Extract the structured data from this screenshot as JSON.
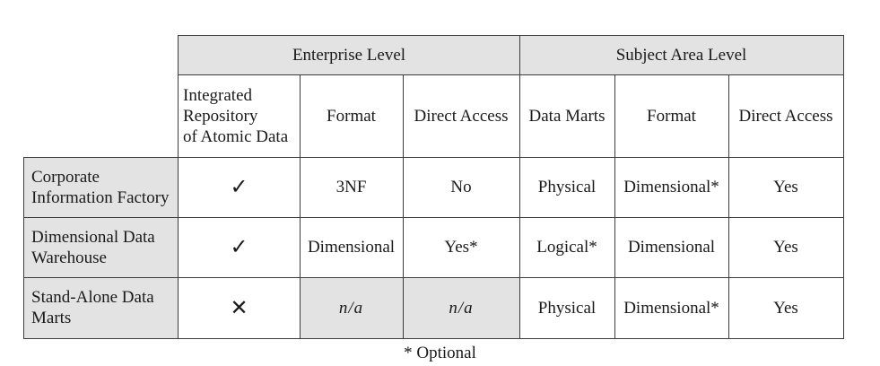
{
  "header": {
    "enterprise_level": "Enterprise Level",
    "subject_area_level": "Subject Area Level"
  },
  "subheader": {
    "integrated_repository": [
      "Integrated",
      "Repository",
      "of Atomic Data"
    ],
    "format_enterprise": "Format",
    "direct_access_enterprise": "Direct Access",
    "data_marts": "Data Marts",
    "format_subject": "Format",
    "direct_access_subject": "Direct Access"
  },
  "rows": [
    {
      "label": [
        "Corporate",
        "Information Factory"
      ],
      "repository": "✓",
      "format": "3NF",
      "direct_access": "No",
      "data_marts": "Physical",
      "subject_format": "Dimensional*",
      "subject_direct_access": "Yes"
    },
    {
      "label": [
        "Dimensional Data",
        "Warehouse"
      ],
      "repository": "✓",
      "format": "Dimensional",
      "direct_access": "Yes*",
      "data_marts": "Logical*",
      "subject_format": "Dimensional",
      "subject_direct_access": "Yes"
    },
    {
      "label": [
        "Stand-Alone Data",
        "Marts"
      ],
      "repository": "✕",
      "format": "n/a",
      "direct_access": "n/a",
      "data_marts": "Physical",
      "subject_format": "Dimensional*",
      "subject_direct_access": "Yes"
    }
  ],
  "footnote": "* Optional"
}
